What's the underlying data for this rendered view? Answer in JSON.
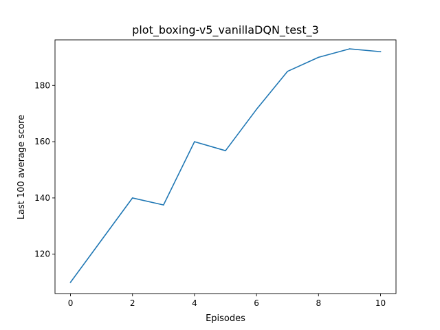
{
  "chart_data": {
    "type": "line",
    "title": "plot_boxing-v5_vanillaDQN_test_3",
    "xlabel": "Episodes",
    "ylabel": "Last 100 average score",
    "xlim": [
      -0.5,
      10.5
    ],
    "ylim": [
      106,
      196.2
    ],
    "x_ticks": [
      0,
      2,
      4,
      6,
      8,
      10
    ],
    "y_ticks": [
      120,
      140,
      160,
      180
    ],
    "grid": false,
    "line_color": "#1f77b4",
    "series": [
      {
        "x": [
          0,
          1,
          2,
          3,
          4,
          5,
          6,
          7,
          8,
          9,
          10
        ],
        "values": [
          110,
          125,
          140,
          137.5,
          160,
          156.8,
          171.5,
          185,
          190,
          193,
          192
        ]
      }
    ]
  }
}
